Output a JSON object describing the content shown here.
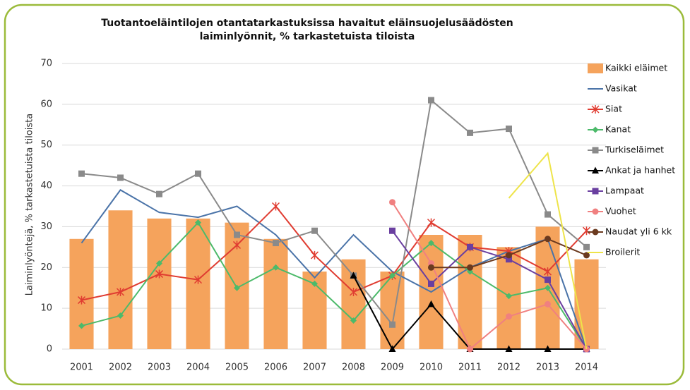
{
  "chart_data": {
    "type": "bar_line",
    "title": [
      "Tuotantoeläintilojen otantatarkastuksissa havaitut eläinsuojelusäädösten",
      "laiminlyönnit, % tarkastetuista tiloista"
    ],
    "y_label": "Laiminlyöntejä, % tarkastetuista tiloista",
    "categories": [
      "2001",
      "2002",
      "2003",
      "2004",
      "2005",
      "2006",
      "2007",
      "2008",
      "2009",
      "2010",
      "2011",
      "2012",
      "2013",
      "2014"
    ],
    "ylim": [
      0,
      70
    ],
    "yticks": [
      0,
      10,
      20,
      30,
      40,
      50,
      60,
      70
    ],
    "grid": true,
    "legend": "right",
    "series": [
      {
        "name": "Kaikki eläimet",
        "kind": "bar",
        "color": "#f5a35c",
        "values": [
          27,
          34,
          32,
          32,
          31,
          27,
          19,
          22,
          19,
          28,
          28,
          25,
          30,
          22
        ]
      },
      {
        "name": "Vasikat",
        "kind": "line",
        "marker": "none",
        "color": "#4a73a8",
        "values": [
          26,
          39,
          33.5,
          32.3,
          35,
          28,
          17.5,
          28,
          19,
          14,
          20,
          24,
          27,
          0
        ]
      },
      {
        "name": "Siat",
        "kind": "line",
        "marker": "star",
        "color": "#e03c31",
        "values": [
          12,
          14,
          18.4,
          17,
          25.5,
          35,
          23,
          14,
          18,
          31,
          25,
          24,
          19,
          29
        ]
      },
      {
        "name": "Kanat",
        "kind": "line",
        "marker": "diamond",
        "color": "#4cba6a",
        "values": [
          5.7,
          8.2,
          21,
          31,
          15,
          20,
          16,
          7,
          18,
          26,
          19,
          13,
          15,
          0
        ]
      },
      {
        "name": "Turkiseläimet",
        "kind": "line",
        "marker": "square",
        "color": "#8a8a8a",
        "values": [
          43,
          42,
          38,
          43,
          28,
          26,
          29,
          18,
          6,
          61,
          53,
          54,
          33,
          25
        ]
      },
      {
        "name": "Ankat ja hanhet",
        "kind": "line",
        "marker": "triangle",
        "color": "#000000",
        "values": [
          null,
          null,
          null,
          null,
          null,
          null,
          null,
          18,
          0,
          11,
          0,
          0,
          0,
          0
        ]
      },
      {
        "name": "Lampaat",
        "kind": "line",
        "marker": "square",
        "color": "#6a3fa0",
        "values": [
          null,
          null,
          null,
          null,
          null,
          null,
          null,
          null,
          29,
          16,
          25,
          22,
          17,
          0
        ]
      },
      {
        "name": "Vuohet",
        "kind": "line",
        "marker": "circle",
        "color": "#f08080",
        "values": [
          null,
          null,
          null,
          null,
          null,
          null,
          null,
          null,
          36,
          21,
          0,
          8,
          11,
          0
        ]
      },
      {
        "name": "Naudat yli 6 kk",
        "kind": "line",
        "marker": "circle",
        "color": "#6b3a1f",
        "values": [
          null,
          null,
          null,
          null,
          null,
          null,
          null,
          null,
          null,
          20,
          20,
          23,
          27,
          23
        ]
      },
      {
        "name": "Broilerit",
        "kind": "line",
        "marker": "none",
        "color": "#eee44a",
        "values": [
          null,
          null,
          null,
          null,
          null,
          null,
          null,
          null,
          null,
          null,
          null,
          37,
          48,
          0
        ]
      }
    ]
  }
}
